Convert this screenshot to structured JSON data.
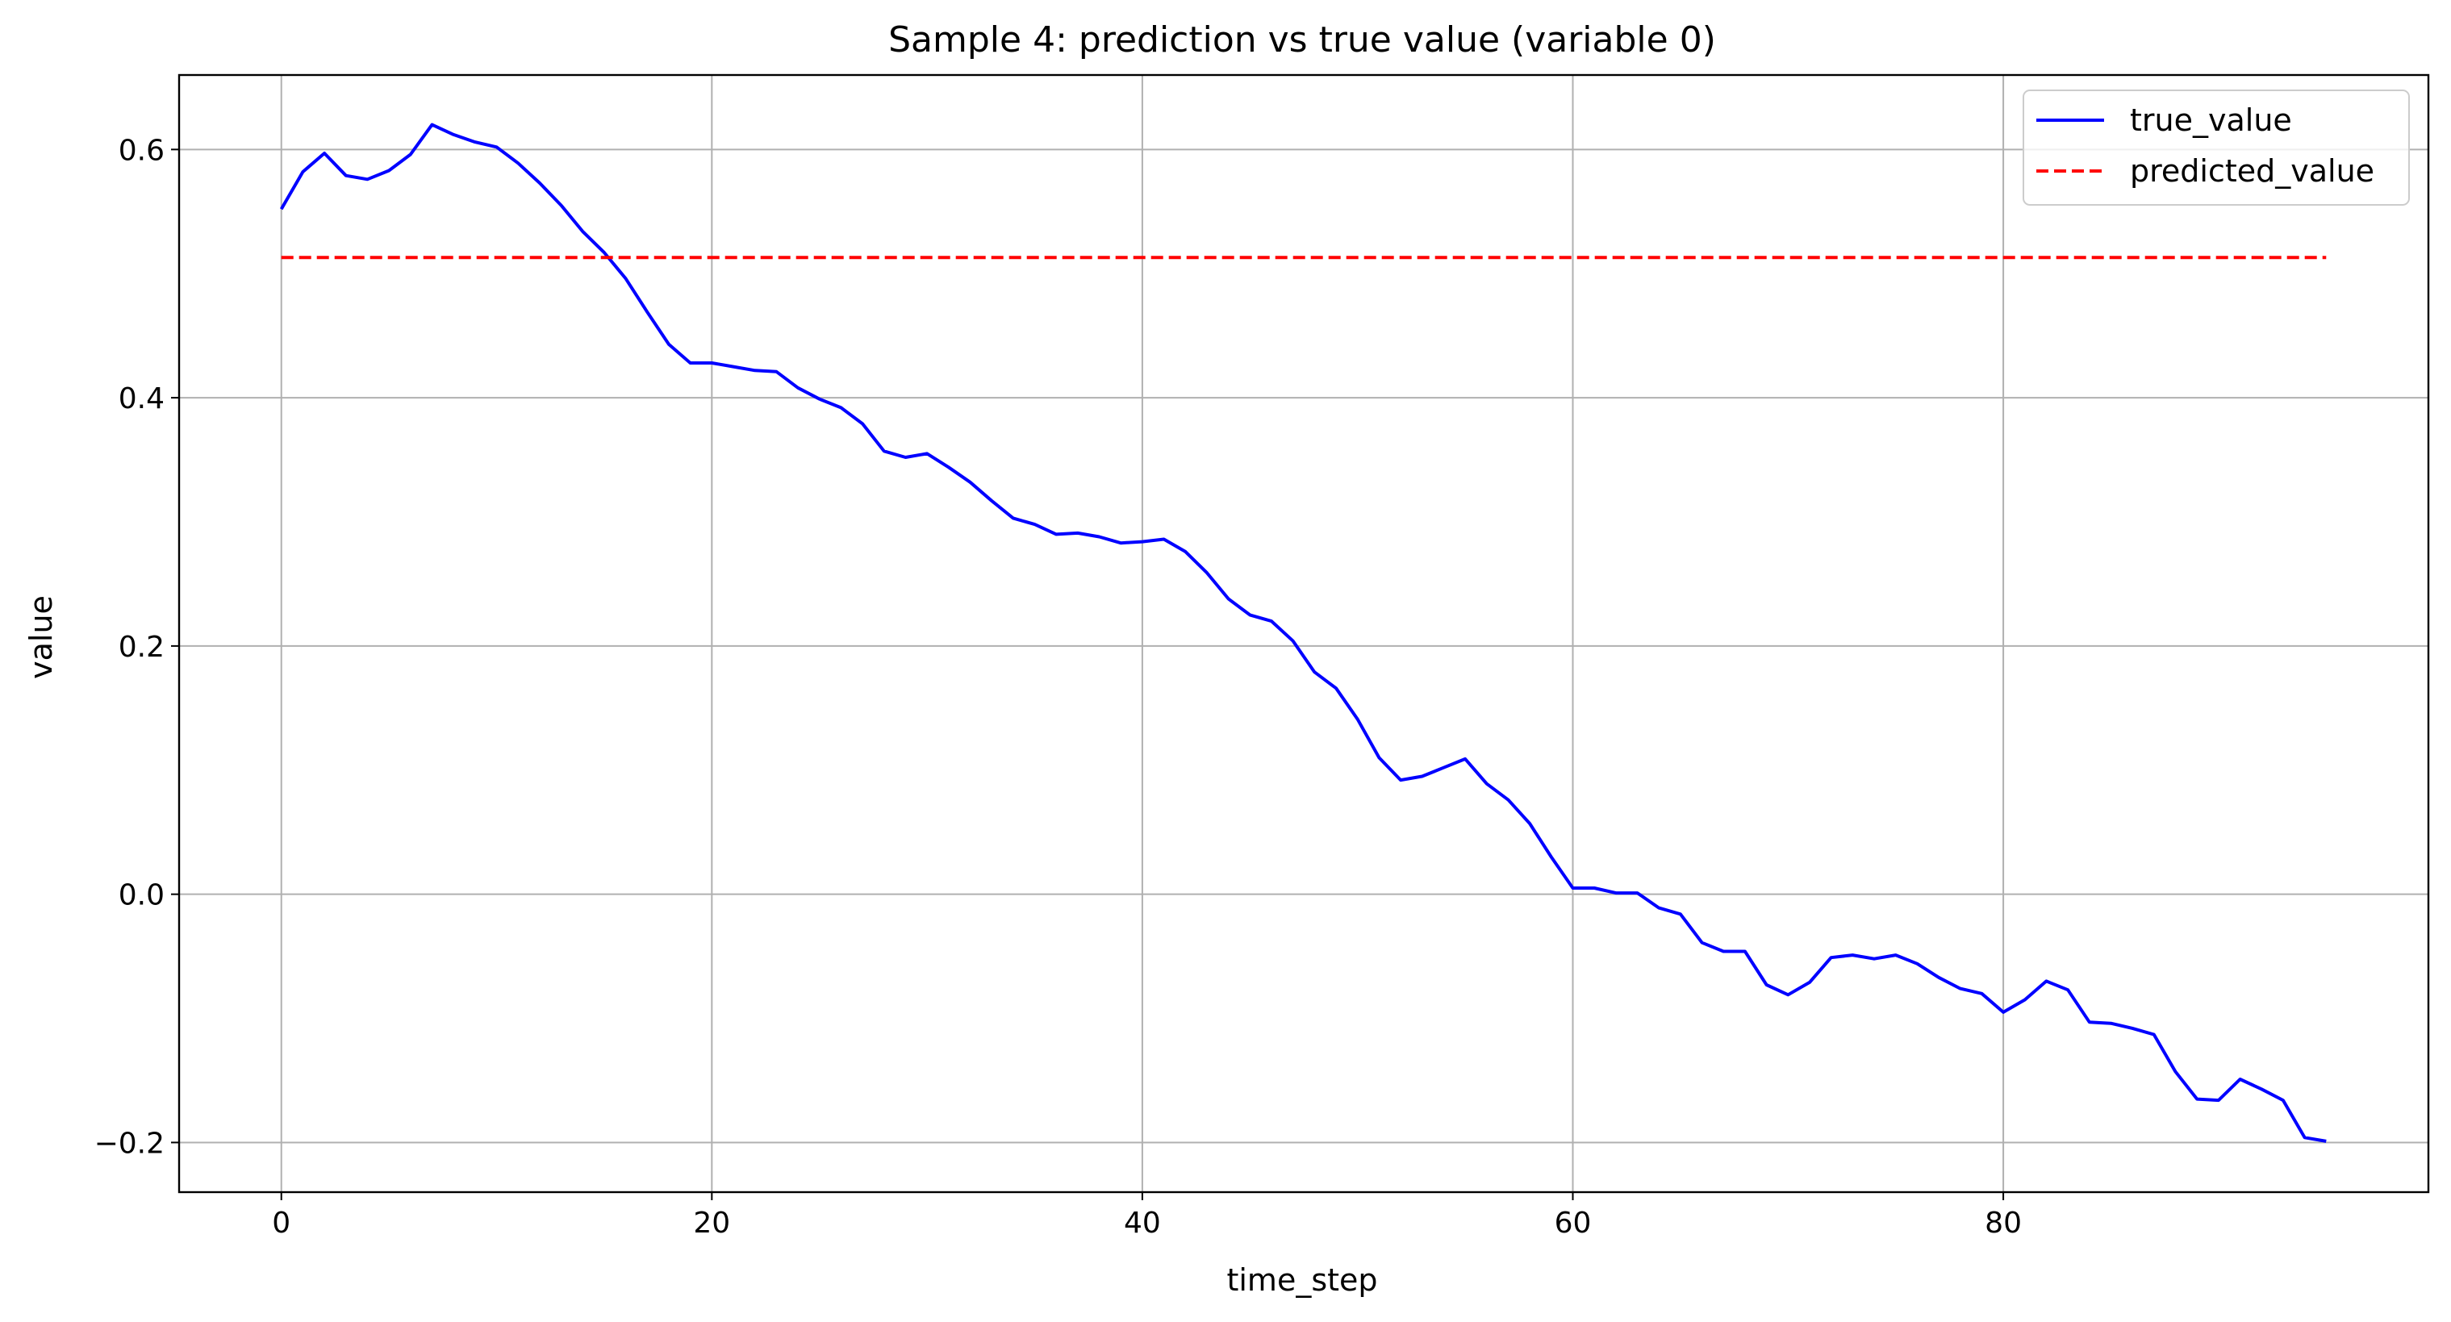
{
  "chart_data": {
    "type": "line",
    "title": "Sample 4: prediction vs true value (variable 0)",
    "xlabel": "time_step",
    "ylabel": "value",
    "xlim": [
      -4.75,
      99.75
    ],
    "ylim": [
      -0.24,
      0.66
    ],
    "xticks": [
      0,
      20,
      40,
      60,
      80
    ],
    "xtick_labels": [
      "0",
      "20",
      "40",
      "60",
      "80"
    ],
    "yticks": [
      -0.2,
      0.0,
      0.2,
      0.4,
      0.6
    ],
    "ytick_labels": [
      "−0.2",
      "0.0",
      "0.2",
      "0.4",
      "0.6"
    ],
    "grid": true,
    "legend_position": "top-right",
    "series": [
      {
        "name": "true_value",
        "color": "#0000ff",
        "style": "solid",
        "x": [
          0,
          1,
          2,
          3,
          4,
          5,
          6,
          7,
          8,
          9,
          10,
          11,
          12,
          13,
          14,
          15,
          16,
          17,
          18,
          19,
          20,
          21,
          22,
          23,
          24,
          25,
          26,
          27,
          28,
          29,
          30,
          31,
          32,
          33,
          34,
          35,
          36,
          37,
          38,
          39,
          40,
          41,
          42,
          43,
          44,
          45,
          46,
          47,
          48,
          49,
          50,
          51,
          52,
          53,
          54,
          55,
          56,
          57,
          58,
          59,
          60,
          61,
          62,
          63,
          64,
          65,
          66,
          67,
          68,
          69,
          70,
          71,
          72,
          73,
          74,
          75,
          76,
          77,
          78,
          79,
          80,
          81,
          82,
          83,
          84,
          85,
          86,
          87,
          88,
          89,
          90,
          91,
          92,
          93,
          94,
          95
        ],
        "values": [
          0.552,
          0.582,
          0.597,
          0.579,
          0.576,
          0.583,
          0.596,
          0.62,
          0.612,
          0.606,
          0.602,
          0.589,
          0.573,
          0.555,
          0.534,
          0.517,
          0.496,
          0.469,
          0.443,
          0.428,
          0.428,
          0.425,
          0.422,
          0.421,
          0.408,
          0.399,
          0.392,
          0.379,
          0.357,
          0.352,
          0.355,
          0.344,
          0.332,
          0.317,
          0.303,
          0.298,
          0.29,
          0.291,
          0.288,
          0.283,
          0.284,
          0.286,
          0.276,
          0.259,
          0.238,
          0.225,
          0.22,
          0.204,
          0.179,
          0.166,
          0.141,
          0.11,
          0.092,
          0.095,
          0.102,
          0.109,
          0.089,
          0.076,
          0.057,
          0.03,
          0.005,
          0.005,
          0.001,
          0.001,
          -0.011,
          -0.016,
          -0.039,
          -0.046,
          -0.046,
          -0.073,
          -0.081,
          -0.071,
          -0.051,
          -0.049,
          -0.052,
          -0.049,
          -0.056,
          -0.067,
          -0.076,
          -0.08,
          -0.095,
          -0.085,
          -0.07,
          -0.077,
          -0.103,
          -0.104,
          -0.108,
          -0.113,
          -0.143,
          -0.165,
          -0.166,
          -0.149,
          -0.157,
          -0.166,
          -0.196,
          -0.199
        ]
      },
      {
        "name": "predicted_value",
        "color": "#ff0000",
        "style": "dashed",
        "x": [
          0,
          95
        ],
        "values": [
          0.513,
          0.513
        ]
      }
    ]
  }
}
